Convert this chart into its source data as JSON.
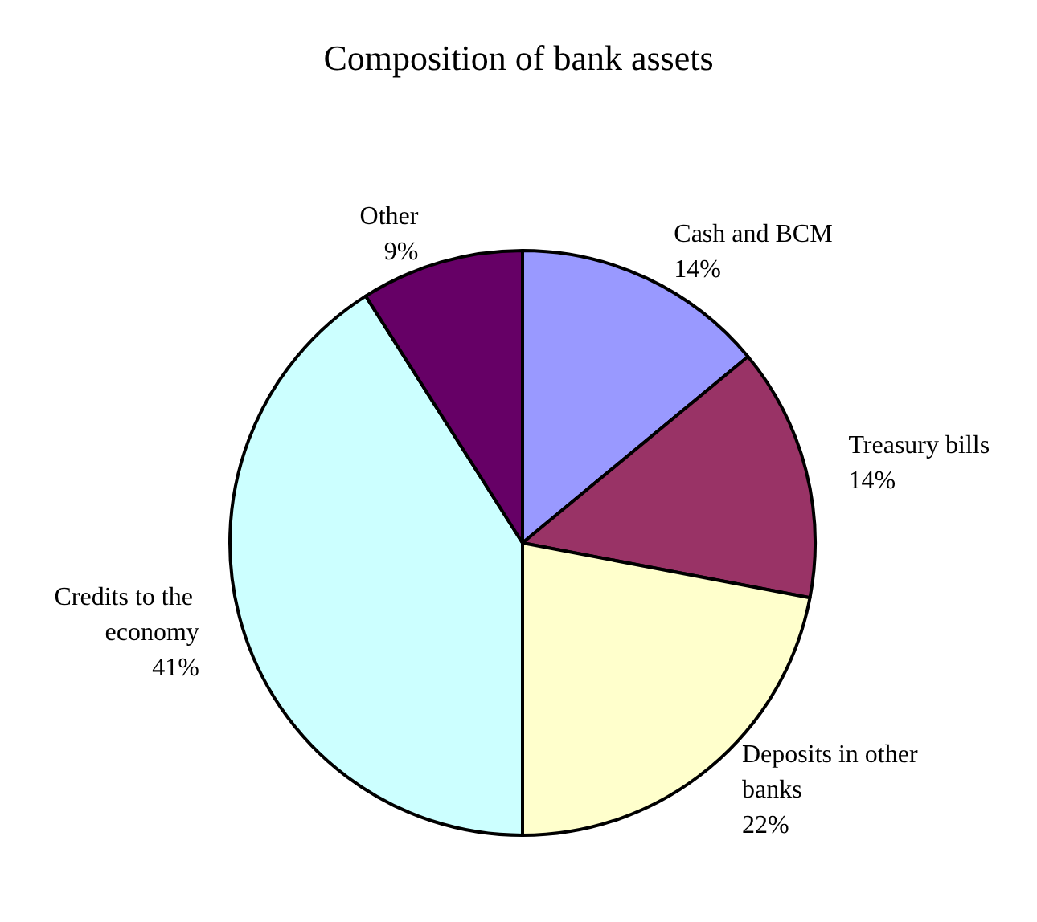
{
  "chart_data": {
    "type": "pie",
    "title": "Composition of bank assets",
    "categories": [
      "Cash and BCM",
      "Treasury bills",
      "Deposits in other banks",
      "Credits to the economy",
      "Other"
    ],
    "values": [
      14,
      14,
      22,
      41,
      9
    ],
    "colors": [
      "#9999ff",
      "#993366",
      "#ffffcc",
      "#ccffff",
      "#660066"
    ],
    "value_labels": [
      "14%",
      "14%",
      "22%",
      "41%",
      "9%"
    ],
    "legend": false
  }
}
